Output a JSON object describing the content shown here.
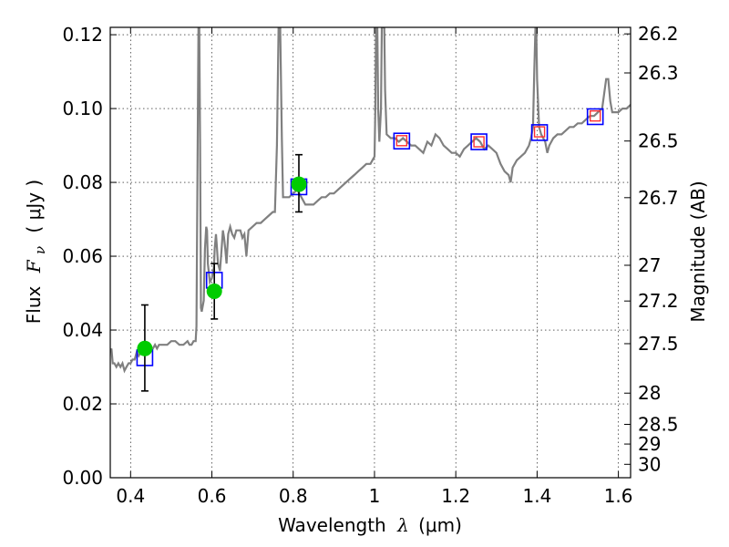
{
  "chart_data": {
    "type": "scatter",
    "xlabel_text": "Wavelength",
    "xlabel_symbol": "λ",
    "xlabel_unit": "(μm)",
    "ylabel_text": "Flux",
    "ylabel_symbol": "F",
    "ylabel_subscript": "ν",
    "ylabel_unit": "( μJy )",
    "y2label": "Magnitude (AB)",
    "xlim": [
      0.35,
      1.63
    ],
    "ylim": [
      0.0,
      0.122
    ],
    "grid": true,
    "x_ticks": [
      {
        "value": 0.4,
        "label": "0.4"
      },
      {
        "value": 0.6,
        "label": "0.6"
      },
      {
        "value": 0.8,
        "label": "0.8"
      },
      {
        "value": 1.0,
        "label": "1"
      },
      {
        "value": 1.2,
        "label": "1.2"
      },
      {
        "value": 1.4,
        "label": "1.4"
      },
      {
        "value": 1.6,
        "label": "1.6"
      }
    ],
    "y_ticks": [
      {
        "value": 0.0,
        "label": "0.00"
      },
      {
        "value": 0.02,
        "label": "0.02"
      },
      {
        "value": 0.04,
        "label": "0.04"
      },
      {
        "value": 0.06,
        "label": "0.06"
      },
      {
        "value": 0.08,
        "label": "0.08"
      },
      {
        "value": 0.1,
        "label": "0.10"
      },
      {
        "value": 0.12,
        "label": "0.12"
      }
    ],
    "y2_ticks": [
      {
        "mag": 26.2,
        "label": "26.2"
      },
      {
        "mag": 26.3,
        "label": "26.3"
      },
      {
        "mag": 26.5,
        "label": "26.5"
      },
      {
        "mag": 26.7,
        "label": "26.7"
      },
      {
        "mag": 27.0,
        "label": "27"
      },
      {
        "mag": 27.2,
        "label": "27.2"
      },
      {
        "mag": 27.5,
        "label": "27.5"
      },
      {
        "mag": 28.0,
        "label": "28"
      },
      {
        "mag": 28.5,
        "label": "28.5"
      },
      {
        "mag": 29.0,
        "label": "29"
      },
      {
        "mag": 30.0,
        "label": "30"
      }
    ],
    "spectrum": [
      [
        0.35,
        0.034
      ],
      [
        0.353,
        0.035
      ],
      [
        0.356,
        0.031
      ],
      [
        0.36,
        0.031
      ],
      [
        0.365,
        0.03
      ],
      [
        0.37,
        0.031
      ],
      [
        0.375,
        0.03
      ],
      [
        0.38,
        0.031
      ],
      [
        0.385,
        0.029
      ],
      [
        0.39,
        0.03
      ],
      [
        0.395,
        0.031
      ],
      [
        0.4,
        0.031
      ],
      [
        0.405,
        0.032
      ],
      [
        0.41,
        0.032
      ],
      [
        0.415,
        0.034
      ],
      [
        0.42,
        0.033
      ],
      [
        0.425,
        0.034
      ],
      [
        0.43,
        0.034
      ],
      [
        0.435,
        0.034
      ],
      [
        0.44,
        0.035
      ],
      [
        0.445,
        0.034
      ],
      [
        0.45,
        0.035
      ],
      [
        0.455,
        0.035
      ],
      [
        0.46,
        0.036
      ],
      [
        0.465,
        0.035
      ],
      [
        0.47,
        0.036
      ],
      [
        0.48,
        0.036
      ],
      [
        0.49,
        0.036
      ],
      [
        0.5,
        0.037
      ],
      [
        0.51,
        0.037
      ],
      [
        0.52,
        0.036
      ],
      [
        0.53,
        0.036
      ],
      [
        0.54,
        0.037
      ],
      [
        0.545,
        0.036
      ],
      [
        0.55,
        0.036
      ],
      [
        0.555,
        0.037
      ],
      [
        0.56,
        0.037
      ],
      [
        0.562,
        0.041
      ],
      [
        0.565,
        0.09
      ],
      [
        0.567,
        0.122
      ],
      [
        0.569,
        0.122
      ],
      [
        0.571,
        0.09
      ],
      [
        0.573,
        0.046
      ],
      [
        0.575,
        0.045
      ],
      [
        0.58,
        0.048
      ],
      [
        0.583,
        0.062
      ],
      [
        0.586,
        0.068
      ],
      [
        0.588,
        0.067
      ],
      [
        0.59,
        0.058
      ],
      [
        0.595,
        0.053
      ],
      [
        0.6,
        0.054
      ],
      [
        0.605,
        0.057
      ],
      [
        0.607,
        0.062
      ],
      [
        0.61,
        0.066
      ],
      [
        0.612,
        0.063
      ],
      [
        0.615,
        0.058
      ],
      [
        0.62,
        0.056
      ],
      [
        0.624,
        0.062
      ],
      [
        0.627,
        0.067
      ],
      [
        0.63,
        0.065
      ],
      [
        0.633,
        0.062
      ],
      [
        0.636,
        0.058
      ],
      [
        0.64,
        0.066
      ],
      [
        0.645,
        0.068
      ],
      [
        0.65,
        0.066
      ],
      [
        0.655,
        0.065
      ],
      [
        0.66,
        0.067
      ],
      [
        0.67,
        0.067
      ],
      [
        0.675,
        0.065
      ],
      [
        0.68,
        0.066
      ],
      [
        0.685,
        0.06
      ],
      [
        0.69,
        0.067
      ],
      [
        0.7,
        0.068
      ],
      [
        0.71,
        0.069
      ],
      [
        0.72,
        0.069
      ],
      [
        0.73,
        0.07
      ],
      [
        0.74,
        0.071
      ],
      [
        0.75,
        0.072
      ],
      [
        0.755,
        0.072
      ],
      [
        0.76,
        0.09
      ],
      [
        0.764,
        0.122
      ],
      [
        0.768,
        0.122
      ],
      [
        0.772,
        0.092
      ],
      [
        0.775,
        0.076
      ],
      [
        0.78,
        0.076
      ],
      [
        0.79,
        0.076
      ],
      [
        0.8,
        0.077
      ],
      [
        0.81,
        0.078
      ],
      [
        0.82,
        0.076
      ],
      [
        0.83,
        0.074
      ],
      [
        0.84,
        0.074
      ],
      [
        0.85,
        0.074
      ],
      [
        0.86,
        0.075
      ],
      [
        0.87,
        0.076
      ],
      [
        0.88,
        0.076
      ],
      [
        0.89,
        0.077
      ],
      [
        0.9,
        0.077
      ],
      [
        0.91,
        0.078
      ],
      [
        0.92,
        0.079
      ],
      [
        0.93,
        0.08
      ],
      [
        0.94,
        0.081
      ],
      [
        0.95,
        0.082
      ],
      [
        0.96,
        0.083
      ],
      [
        0.97,
        0.084
      ],
      [
        0.98,
        0.085
      ],
      [
        0.99,
        0.085
      ],
      [
        0.995,
        0.086
      ],
      [
        1.0,
        0.087
      ],
      [
        1.002,
        0.1
      ],
      [
        1.004,
        0.122
      ],
      [
        1.007,
        0.122
      ],
      [
        1.009,
        0.1
      ],
      [
        1.012,
        0.091
      ],
      [
        1.016,
        0.1
      ],
      [
        1.018,
        0.122
      ],
      [
        1.024,
        0.122
      ],
      [
        1.026,
        0.105
      ],
      [
        1.03,
        0.093
      ],
      [
        1.04,
        0.092
      ],
      [
        1.05,
        0.092
      ],
      [
        1.06,
        0.091
      ],
      [
        1.07,
        0.092
      ],
      [
        1.08,
        0.091
      ],
      [
        1.09,
        0.09
      ],
      [
        1.1,
        0.09
      ],
      [
        1.11,
        0.089
      ],
      [
        1.12,
        0.088
      ],
      [
        1.13,
        0.091
      ],
      [
        1.14,
        0.09
      ],
      [
        1.15,
        0.093
      ],
      [
        1.16,
        0.092
      ],
      [
        1.17,
        0.09
      ],
      [
        1.18,
        0.089
      ],
      [
        1.19,
        0.088
      ],
      [
        1.2,
        0.088
      ],
      [
        1.21,
        0.087
      ],
      [
        1.22,
        0.089
      ],
      [
        1.23,
        0.09
      ],
      [
        1.24,
        0.091
      ],
      [
        1.25,
        0.092
      ],
      [
        1.26,
        0.091
      ],
      [
        1.27,
        0.089
      ],
      [
        1.28,
        0.09
      ],
      [
        1.29,
        0.089
      ],
      [
        1.3,
        0.088
      ],
      [
        1.31,
        0.085
      ],
      [
        1.32,
        0.083
      ],
      [
        1.33,
        0.082
      ],
      [
        1.335,
        0.08
      ],
      [
        1.34,
        0.084
      ],
      [
        1.35,
        0.086
      ],
      [
        1.36,
        0.087
      ],
      [
        1.37,
        0.088
      ],
      [
        1.38,
        0.09
      ],
      [
        1.385,
        0.092
      ],
      [
        1.39,
        0.095
      ],
      [
        1.393,
        0.11
      ],
      [
        1.396,
        0.122
      ],
      [
        1.398,
        0.122
      ],
      [
        1.4,
        0.108
      ],
      [
        1.405,
        0.095
      ],
      [
        1.41,
        0.093
      ],
      [
        1.42,
        0.091
      ],
      [
        1.425,
        0.088
      ],
      [
        1.43,
        0.09
      ],
      [
        1.44,
        0.092
      ],
      [
        1.45,
        0.093
      ],
      [
        1.46,
        0.093
      ],
      [
        1.47,
        0.094
      ],
      [
        1.48,
        0.095
      ],
      [
        1.49,
        0.095
      ],
      [
        1.5,
        0.096
      ],
      [
        1.51,
        0.096
      ],
      [
        1.52,
        0.097
      ],
      [
        1.53,
        0.098
      ],
      [
        1.54,
        0.098
      ],
      [
        1.55,
        0.099
      ],
      [
        1.56,
        0.1
      ],
      [
        1.565,
        0.104
      ],
      [
        1.57,
        0.108
      ],
      [
        1.575,
        0.108
      ],
      [
        1.58,
        0.102
      ],
      [
        1.585,
        0.099
      ],
      [
        1.59,
        0.099
      ],
      [
        1.6,
        0.099
      ],
      [
        1.61,
        0.1
      ],
      [
        1.62,
        0.1
      ],
      [
        1.63,
        0.101
      ]
    ],
    "model_squares": [
      {
        "x": 0.435,
        "y": 0.0325
      },
      {
        "x": 0.606,
        "y": 0.0535
      },
      {
        "x": 0.814,
        "y": 0.0788
      },
      {
        "x": 1.067,
        "y": 0.0912
      },
      {
        "x": 1.257,
        "y": 0.091
      },
      {
        "x": 1.406,
        "y": 0.0935
      },
      {
        "x": 1.543,
        "y": 0.0978
      }
    ],
    "red_squares": [
      {
        "x": 1.067,
        "y": 0.0913
      },
      {
        "x": 1.257,
        "y": 0.091
      },
      {
        "x": 1.406,
        "y": 0.0937
      },
      {
        "x": 1.543,
        "y": 0.098
      }
    ],
    "observed_points": [
      {
        "x": 0.435,
        "y": 0.035,
        "err_low": 0.0235,
        "err_high": 0.0468
      },
      {
        "x": 0.606,
        "y": 0.0505,
        "err_low": 0.043,
        "err_high": 0.058
      },
      {
        "x": 0.814,
        "y": 0.0795,
        "err_low": 0.072,
        "err_high": 0.0875
      }
    ],
    "colors": {
      "spectrum": "#808080",
      "model_square": "#0000ff",
      "red_square": "#ff3030",
      "observed": "#00cc00",
      "error_bar": "#000000"
    }
  }
}
